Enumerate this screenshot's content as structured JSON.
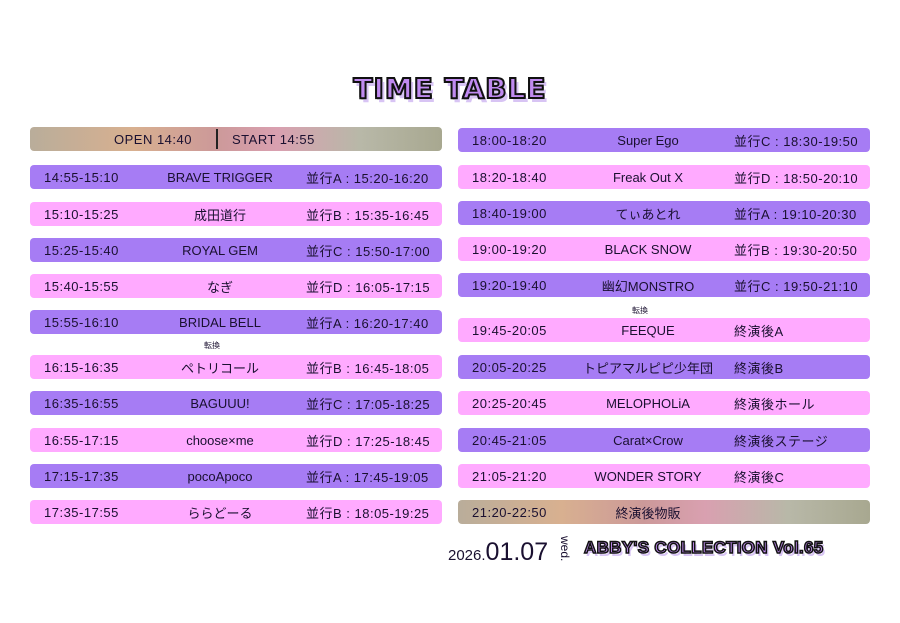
{
  "title": "TIME TABLE",
  "header": {
    "open": "OPEN 14:40",
    "start": "START 14:55"
  },
  "transition_label": "転換",
  "left": [
    {
      "time": "14:55-15:10",
      "name": "BRAVE TRIGGER",
      "extra": "並行A : 15:20-16:20",
      "color": "purple"
    },
    {
      "time": "15:10-15:25",
      "name": "成田道行",
      "extra": "並行B : 15:35-16:45",
      "color": "pink"
    },
    {
      "time": "15:25-15:40",
      "name": "ROYAL GEM",
      "extra": "並行C : 15:50-17:00",
      "color": "purple"
    },
    {
      "time": "15:40-15:55",
      "name": "なぎ",
      "extra": "並行D : 16:05-17:15",
      "color": "pink"
    },
    {
      "time": "15:55-16:10",
      "name": "BRIDAL BELL",
      "extra": "並行A : 16:20-17:40",
      "color": "purple"
    },
    {
      "time": "16:15-16:35",
      "name": "ペトリコール",
      "extra": "並行B : 16:45-18:05",
      "color": "pink"
    },
    {
      "time": "16:35-16:55",
      "name": "BAGUUU!",
      "extra": "並行C : 17:05-18:25",
      "color": "purple"
    },
    {
      "time": "16:55-17:15",
      "name": "choose×me",
      "extra": "並行D : 17:25-18:45",
      "color": "pink"
    },
    {
      "time": "17:15-17:35",
      "name": "pocoApoco",
      "extra": "並行A : 17:45-19:05",
      "color": "purple"
    },
    {
      "time": "17:35-17:55",
      "name": "ららどーる",
      "extra": "並行B : 18:05-19:25",
      "color": "pink"
    }
  ],
  "right": [
    {
      "time": "18:00-18:20",
      "name": "Super Ego",
      "extra": "並行C : 18:30-19:50",
      "color": "purple"
    },
    {
      "time": "18:20-18:40",
      "name": "Freak Out X",
      "extra": "並行D : 18:50-20:10",
      "color": "pink"
    },
    {
      "time": "18:40-19:00",
      "name": "てぃあとれ",
      "extra": "並行A : 19:10-20:30",
      "color": "purple"
    },
    {
      "time": "19:00-19:20",
      "name": "BLACK SNOW",
      "extra": "並行B : 19:30-20:50",
      "color": "pink"
    },
    {
      "time": "19:20-19:40",
      "name": "幽幻MONSTRO",
      "extra": "並行C : 19:50-21:10",
      "color": "purple"
    },
    {
      "time": "19:45-20:05",
      "name": "FEEQUE",
      "extra": "終演後A",
      "color": "pink"
    },
    {
      "time": "20:05-20:25",
      "name": "トピアマルピピ少年団",
      "extra": "終演後B",
      "color": "purple"
    },
    {
      "time": "20:25-20:45",
      "name": "MELOPHOLiA",
      "extra": "終演後ホール",
      "color": "pink"
    },
    {
      "time": "20:45-21:05",
      "name": "Carat×Crow",
      "extra": "終演後ステージ",
      "color": "purple"
    },
    {
      "time": "21:05-21:20",
      "name": "WONDER STORY",
      "extra": "終演後C",
      "color": "pink"
    }
  ],
  "merch": {
    "time": "21:20-22:50",
    "name": "終演後物販"
  },
  "footer": {
    "year": "2026.",
    "date": "01.07",
    "weekday": "wed.",
    "event": "ABBY'S COLLECTION Vol.65"
  },
  "colors": {
    "purple": "#a67cf4",
    "pink": "#ffaaff",
    "title_fill": "#c08af0"
  }
}
